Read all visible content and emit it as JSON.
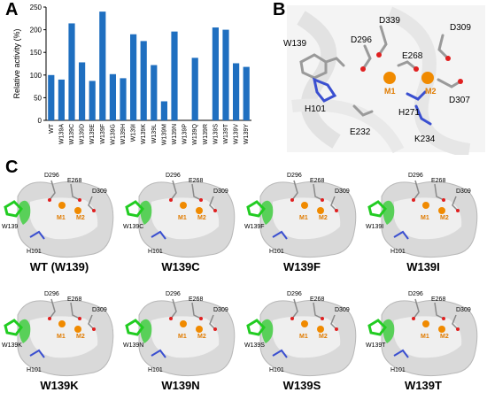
{
  "panels": {
    "a": {
      "letter": "A"
    },
    "b": {
      "letter": "B"
    },
    "c": {
      "letter": "C"
    }
  },
  "chart_data": {
    "type": "bar",
    "title": "",
    "xlabel": "",
    "ylabel": "Relative activity (%)",
    "ylim": [
      0,
      250
    ],
    "yticks": [
      0,
      50,
      100,
      150,
      200,
      250
    ],
    "bar_color": "#1f6fc0",
    "categories": [
      "WT",
      "W139A",
      "W139C",
      "W139D",
      "W139E",
      "W139F",
      "W139G",
      "W139H",
      "W139I",
      "W139K",
      "W139L",
      "W139M",
      "W139N",
      "W139P",
      "W139Q",
      "W139R",
      "W139S",
      "W139T",
      "W139V",
      "W139Y"
    ],
    "values": [
      100,
      90,
      214,
      128,
      87,
      240,
      102,
      93,
      190,
      175,
      122,
      42,
      196,
      0,
      138,
      0,
      205,
      200,
      126,
      118
    ]
  },
  "structure_b": {
    "labels": [
      "W139",
      "D296",
      "D339",
      "D309",
      "E268",
      "H101",
      "M1",
      "M2",
      "D307",
      "H271",
      "E232",
      "K234"
    ],
    "metal_color": "#f08a00"
  },
  "structure_c": {
    "site_labels": [
      "D296",
      "E268",
      "D309",
      "M1",
      "M2"
    ],
    "mutants": [
      {
        "name": "WT (W139)",
        "residue": "W139"
      },
      {
        "name": "W139C",
        "residue": "W139C"
      },
      {
        "name": "W139F",
        "residue": "W139F"
      },
      {
        "name": "W139I",
        "residue": "W139I"
      },
      {
        "name": "W139K",
        "residue": "W139K"
      },
      {
        "name": "W139N",
        "residue": "W139N"
      },
      {
        "name": "W139S",
        "residue": "W139S"
      },
      {
        "name": "W139T",
        "residue": "W139T"
      }
    ],
    "h101_label": "H101",
    "residue_color": "#22cc22"
  }
}
